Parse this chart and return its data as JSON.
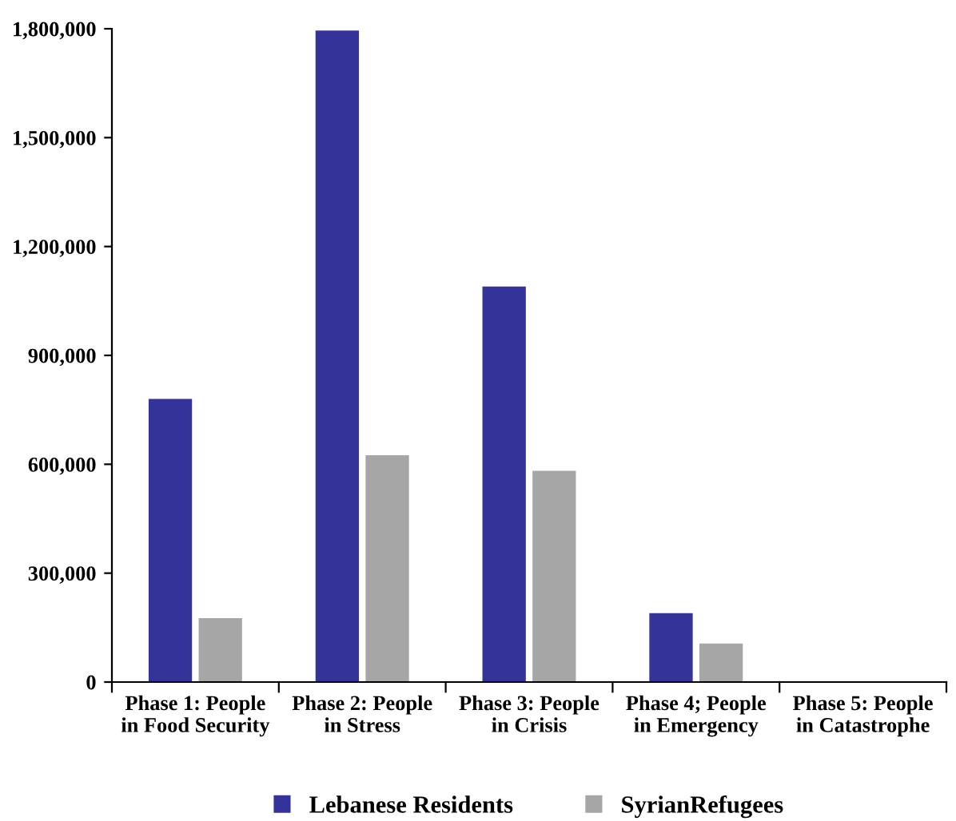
{
  "chart_data": {
    "type": "bar",
    "categories": [
      "Phase 1: People\nin Food Security",
      "Phase 2: People\nin Stress",
      "Phase 3: People\nin Crisis",
      "Phase 4; People\nin Emergency",
      "Phase 5: People\nin Catastrophe"
    ],
    "series": [
      {
        "name": "Lebanese Residents",
        "color": "#333399",
        "values": [
          780000,
          1795000,
          1090000,
          190000,
          0
        ]
      },
      {
        "name": "SyrianRefugees",
        "color": "#a6a6a6",
        "values": [
          176000,
          625000,
          582000,
          106000,
          0
        ]
      }
    ],
    "ylim": [
      0,
      1800000
    ],
    "yticks": [
      {
        "value": 0,
        "label": "0"
      },
      {
        "value": 300000,
        "label": "300,000"
      },
      {
        "value": 600000,
        "label": "600,000"
      },
      {
        "value": 900000,
        "label": "900,000"
      },
      {
        "value": 1200000,
        "label": "1,200,000"
      },
      {
        "value": 1500000,
        "label": "1,500,000"
      },
      {
        "value": 1800000,
        "label": "1,800,000"
      }
    ],
    "grid": false,
    "legend": "bottom"
  }
}
